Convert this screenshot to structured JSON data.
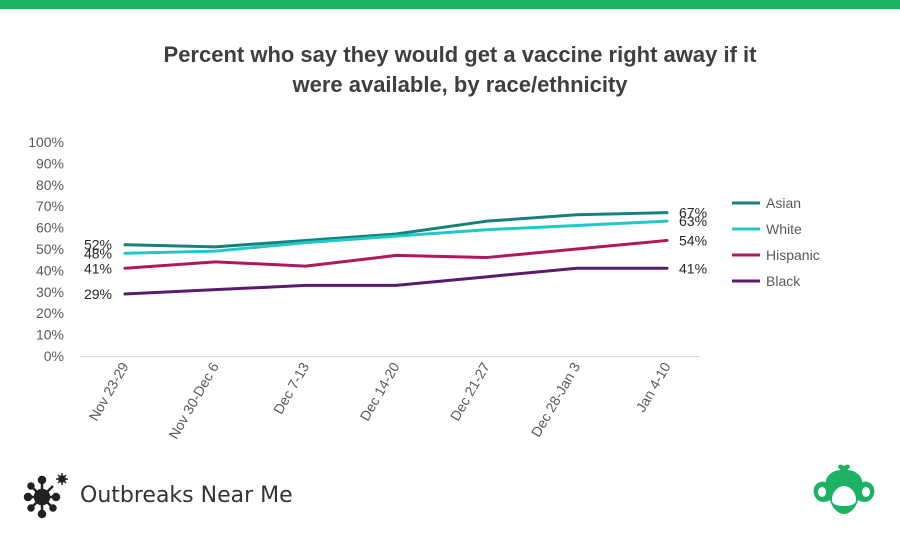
{
  "brand": {
    "name": "Outbreaks Near Me",
    "logo_icon": "molecule-icon",
    "corner_logo_icon": "surveymonkey-logo-icon"
  },
  "colors": {
    "top_bar": "#1bb363",
    "brand_green": "#1bb363"
  },
  "chart_data": {
    "type": "line",
    "title": "Percent who say they would get a vaccine right away if it were available, by race/ethnicity",
    "title_lines": [
      "Percent who say they would get a vaccine right away if it",
      "were available, by race/ethnicity"
    ],
    "xlabel": "",
    "ylabel": "",
    "ylim": [
      0,
      100
    ],
    "y_ticks": [
      "0%",
      "10%",
      "20%",
      "30%",
      "40%",
      "50%",
      "60%",
      "70%",
      "80%",
      "90%",
      "100%"
    ],
    "categories": [
      "Nov 23-29",
      "Nov 30-Dec 6",
      "Dec 7-13",
      "Dec 14-20",
      "Dec 21-27",
      "Dec 28-Jan 3",
      "Jan 4-10"
    ],
    "grid": false,
    "legend_position": "right",
    "series": [
      {
        "name": "Asian",
        "color": "#16817a",
        "values": [
          52,
          51,
          54,
          57,
          63,
          66,
          67
        ],
        "start_label": "52%",
        "end_label": "67%"
      },
      {
        "name": "White",
        "color": "#21c8c9",
        "values": [
          48,
          49,
          53,
          56,
          59,
          61,
          63
        ],
        "start_label": "48%",
        "end_label": "63%"
      },
      {
        "name": "Hispanic",
        "color": "#b0175c",
        "values": [
          41,
          44,
          42,
          47,
          46,
          50,
          54
        ],
        "start_label": "41%",
        "end_label": "54%"
      },
      {
        "name": "Black",
        "color": "#5a1a6e",
        "values": [
          29,
          31,
          33,
          33,
          37,
          41,
          41
        ],
        "start_label": "29%",
        "end_label": "41%"
      }
    ]
  }
}
